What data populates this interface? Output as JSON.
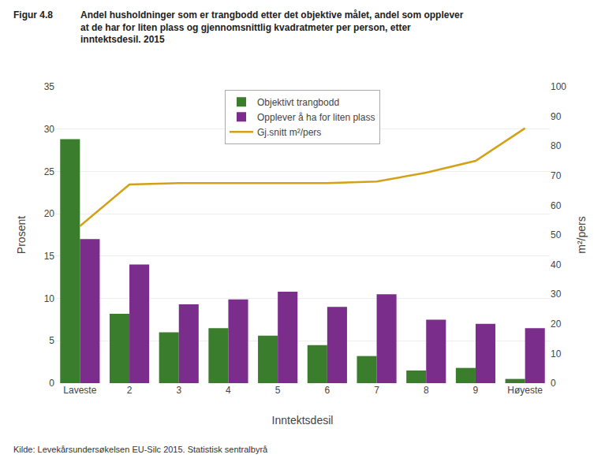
{
  "chart_data": {
    "type": "bar",
    "title": "Figur 4.8",
    "subtitle": "Andel husholdninger som er trangbodd etter det objektive målet, andel som opplever\nat de har for liten plass og gjennomsnittlig kvadratmeter per person, etter\ninntektsdesil. 2015",
    "annotations": [
      "Kilde: Levekårsundersøkelsen EU-Silc 2015. Statistisk sentralbyrå"
    ],
    "xlabel": "Inntektsdesil",
    "ylabel": "Prosent",
    "y2label": "m²/pers",
    "categories": [
      "Laveste",
      "2",
      "3",
      "4",
      "5",
      "6",
      "7",
      "8",
      "9",
      "Høyeste"
    ],
    "series": [
      {
        "name": "Objektivt trangbodd",
        "color": "#3a7d2c",
        "values": [
          28.8,
          8.2,
          6.0,
          6.5,
          5.6,
          4.5,
          3.2,
          1.5,
          1.8,
          0.5
        ]
      },
      {
        "name": "Opplever å ha for liten plass",
        "color": "#7b2d8b",
        "values": [
          17.0,
          14.0,
          9.3,
          9.9,
          10.8,
          9.0,
          10.5,
          7.5,
          7.0,
          6.5
        ]
      },
      {
        "name": "Gj.snitt m²/pers",
        "type": "line",
        "axis": "y2",
        "color": "#d4a017",
        "values": [
          53.0,
          67.0,
          67.5,
          67.5,
          67.5,
          67.5,
          68.0,
          71.0,
          75.0,
          86.0
        ]
      }
    ],
    "ylim": [
      0,
      35
    ],
    "yticks": [
      0,
      5,
      10,
      15,
      20,
      25,
      30,
      35
    ],
    "y2lim": [
      0,
      100
    ],
    "y2ticks": [
      0,
      10,
      20,
      30,
      40,
      50,
      60,
      70,
      80,
      90,
      100
    ],
    "grid": true,
    "legend": "upper center"
  }
}
